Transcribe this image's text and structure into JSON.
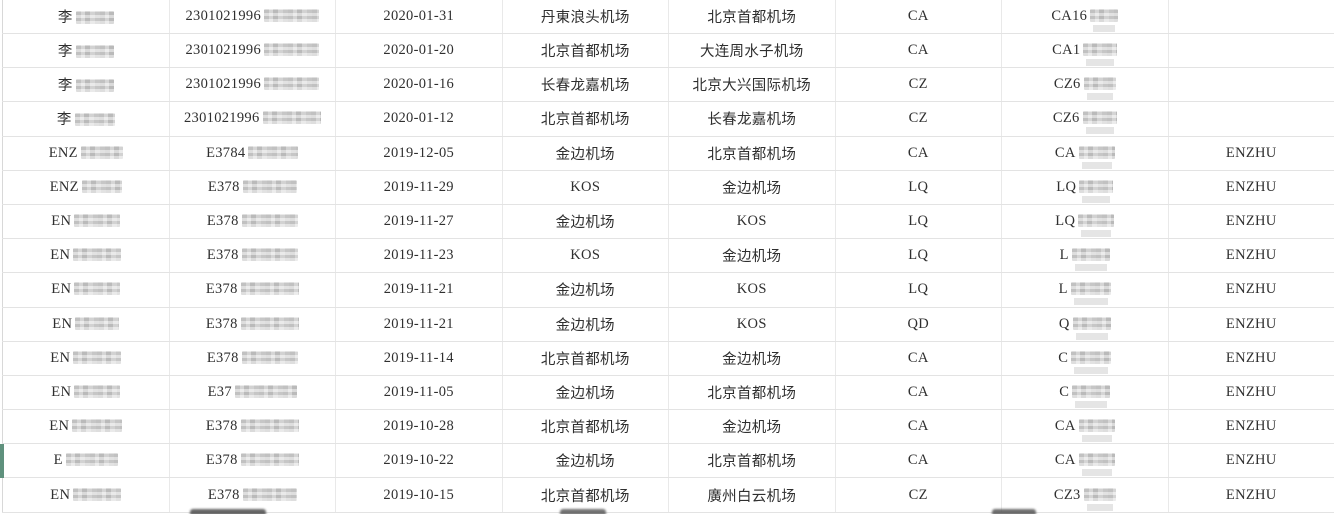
{
  "colors": {
    "row_marker_green": "#5f917d",
    "grid_line": "#e3e3e3",
    "text": "#2f2f2f",
    "redaction_light": "#d2d2d2",
    "redaction_dark": "#4c4c4c"
  },
  "table": {
    "marker_row_index": 13,
    "rows": [
      {
        "cells": [
          {
            "t": "李",
            "b": 38
          },
          {
            "t": "2301021996",
            "b": 55
          },
          {
            "t": "2020-01-31"
          },
          {
            "t": "丹東浪头机场"
          },
          {
            "t": "北京首都机场"
          },
          {
            "t": "CA"
          },
          {
            "t": "CA16",
            "b": 28
          },
          {
            "t": ""
          }
        ]
      },
      {
        "cells": [
          {
            "t": "李",
            "b": 38
          },
          {
            "t": "2301021996",
            "b": 55
          },
          {
            "t": "2020-01-20"
          },
          {
            "t": "北京首都机场"
          },
          {
            "t": "大连周水子机场"
          },
          {
            "t": "CA"
          },
          {
            "t": "CA1",
            "b": 34
          },
          {
            "t": ""
          }
        ]
      },
      {
        "cells": [
          {
            "t": "李",
            "b": 38
          },
          {
            "t": "2301021996",
            "b": 55
          },
          {
            "t": "2020-01-16"
          },
          {
            "t": "长春龙嘉机场"
          },
          {
            "t": "北京大兴国际机场"
          },
          {
            "t": "CZ"
          },
          {
            "t": "CZ6",
            "b": 32
          },
          {
            "t": ""
          }
        ]
      },
      {
        "cells": [
          {
            "t": "李",
            "b": 40
          },
          {
            "t": "2301021996",
            "b": 58
          },
          {
            "t": "2020-01-12"
          },
          {
            "t": "北京首都机场"
          },
          {
            "t": "长春龙嘉机场"
          },
          {
            "t": "CZ"
          },
          {
            "t": "CZ6",
            "b": 34
          },
          {
            "t": ""
          }
        ]
      },
      {
        "cells": [
          {
            "t": "ENZ",
            "b": 42
          },
          {
            "t": "E3784",
            "b": 50
          },
          {
            "t": "2019-12-05"
          },
          {
            "t": "金边机场"
          },
          {
            "t": "北京首都机场"
          },
          {
            "t": "CA"
          },
          {
            "t": "CA",
            "b": 36
          },
          {
            "t": "ENZHU"
          }
        ]
      },
      {
        "cells": [
          {
            "t": "ENZ",
            "b": 40
          },
          {
            "t": "E378",
            "b": 54
          },
          {
            "t": "2019-11-29"
          },
          {
            "t": "KOS"
          },
          {
            "t": "金边机场"
          },
          {
            "t": "LQ"
          },
          {
            "t": "LQ",
            "b": 34
          },
          {
            "t": "ENZHU"
          }
        ]
      },
      {
        "cells": [
          {
            "t": "EN",
            "b": 46
          },
          {
            "t": "E378",
            "b": 56
          },
          {
            "t": "2019-11-27"
          },
          {
            "t": "金边机场"
          },
          {
            "t": "KOS"
          },
          {
            "t": "LQ"
          },
          {
            "t": "LQ",
            "b": 36
          },
          {
            "t": "ENZHU"
          }
        ]
      },
      {
        "cells": [
          {
            "t": "EN",
            "b": 48
          },
          {
            "t": "E378",
            "b": 56
          },
          {
            "t": "2019-11-23"
          },
          {
            "t": "KOS"
          },
          {
            "t": "金边机场"
          },
          {
            "t": "LQ"
          },
          {
            "t": "L",
            "b": 38
          },
          {
            "t": "ENZHU"
          }
        ]
      },
      {
        "cells": [
          {
            "t": "EN",
            "b": 46
          },
          {
            "t": "E378",
            "b": 58
          },
          {
            "t": "2019-11-21"
          },
          {
            "t": "金边机场"
          },
          {
            "t": "KOS"
          },
          {
            "t": "LQ"
          },
          {
            "t": "L",
            "b": 40
          },
          {
            "t": "ENZHU"
          }
        ]
      },
      {
        "cells": [
          {
            "t": "EN",
            "b": 44
          },
          {
            "t": "E378",
            "b": 58
          },
          {
            "t": "2019-11-21"
          },
          {
            "t": "金边机场"
          },
          {
            "t": "KOS"
          },
          {
            "t": "QD"
          },
          {
            "t": "Q",
            "b": 38
          },
          {
            "t": "ENZHU"
          }
        ]
      },
      {
        "cells": [
          {
            "t": "EN",
            "b": 48
          },
          {
            "t": "E378",
            "b": 56
          },
          {
            "t": "2019-11-14"
          },
          {
            "t": "北京首都机场"
          },
          {
            "t": "金边机场"
          },
          {
            "t": "CA"
          },
          {
            "t": "C",
            "b": 40
          },
          {
            "t": "ENZHU"
          }
        ]
      },
      {
        "cells": [
          {
            "t": "EN",
            "b": 46
          },
          {
            "t": "E37",
            "b": 62
          },
          {
            "t": "2019-11-05"
          },
          {
            "t": "金边机场"
          },
          {
            "t": "北京首都机场"
          },
          {
            "t": "CA"
          },
          {
            "t": "C",
            "b": 38
          },
          {
            "t": "ENZHU"
          }
        ]
      },
      {
        "cells": [
          {
            "t": "EN",
            "b": 50
          },
          {
            "t": "E378",
            "b": 58
          },
          {
            "t": "2019-10-28"
          },
          {
            "t": "北京首都机场"
          },
          {
            "t": "金边机场"
          },
          {
            "t": "CA"
          },
          {
            "t": "CA",
            "b": 36
          },
          {
            "t": "ENZHU"
          }
        ]
      },
      {
        "cells": [
          {
            "t": "E",
            "b": 52
          },
          {
            "t": "E378",
            "b": 58
          },
          {
            "t": "2019-10-22"
          },
          {
            "t": "金边机场"
          },
          {
            "t": "北京首都机场"
          },
          {
            "t": "CA"
          },
          {
            "t": "CA",
            "b": 36
          },
          {
            "t": "ENZHU"
          }
        ]
      },
      {
        "cells": [
          {
            "t": "EN",
            "b": 48
          },
          {
            "t": "E378",
            "b": 54
          },
          {
            "t": "2019-10-15"
          },
          {
            "t": "北京首都机场"
          },
          {
            "t": "廣州白云机场"
          },
          {
            "t": "CZ"
          },
          {
            "t": "CZ3",
            "b": 32
          },
          {
            "t": "ENZHU"
          }
        ]
      }
    ]
  }
}
